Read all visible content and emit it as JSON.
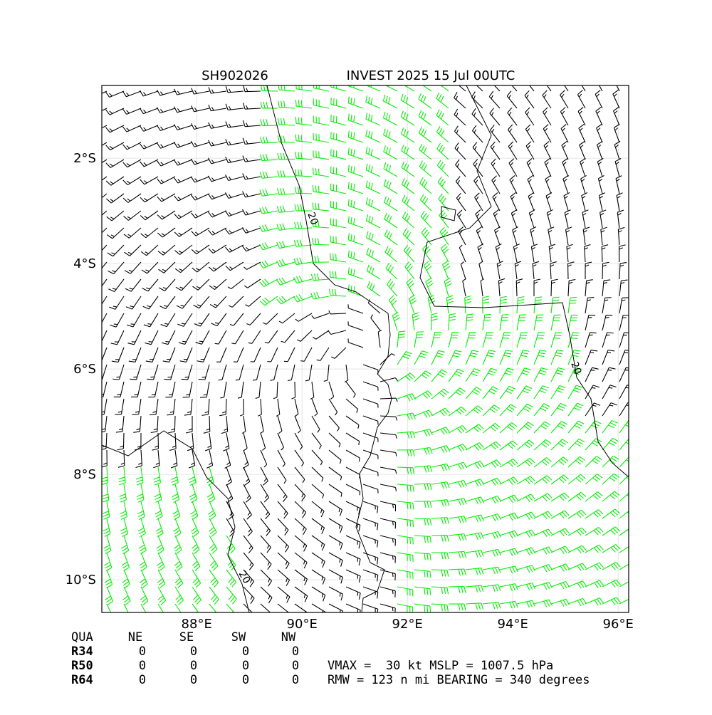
{
  "chart_data": {
    "type": "barbs",
    "title_left": "SH902026",
    "title_right": "INVEST 2025 15 Jul 00UTC",
    "xlim": [
      86.2,
      96.2
    ],
    "ylim": [
      -10.62,
      -0.62
    ],
    "xticks": [
      {
        "value": 88,
        "label": "88°E"
      },
      {
        "value": 90,
        "label": "90°E"
      },
      {
        "value": 92,
        "label": "92°E"
      },
      {
        "value": 94,
        "label": "94°E"
      },
      {
        "value": 96,
        "label": "96°E"
      }
    ],
    "yticks": [
      {
        "value": -2,
        "label": "2°S"
      },
      {
        "value": -4,
        "label": "4°S"
      },
      {
        "value": -6,
        "label": "6°S"
      },
      {
        "value": -8,
        "label": "8°S"
      },
      {
        "value": -10,
        "label": "10°S"
      }
    ],
    "grid": true,
    "contour_labels": [
      "20",
      "20",
      "20"
    ]
  },
  "table": {
    "header": [
      "QUA",
      "NE",
      "SE",
      "SW",
      "NW"
    ],
    "rows": [
      [
        "R34",
        "0",
        "0",
        "0",
        "0"
      ],
      [
        "R50",
        "0",
        "0",
        "0",
        "0"
      ],
      [
        "R64",
        "0",
        "0",
        "0",
        "0"
      ]
    ]
  },
  "info": [
    "VMAX =  30 kt MSLP = 1007.5 hPa",
    "RMW = 123 n mi BEARING = 340 degrees"
  ]
}
